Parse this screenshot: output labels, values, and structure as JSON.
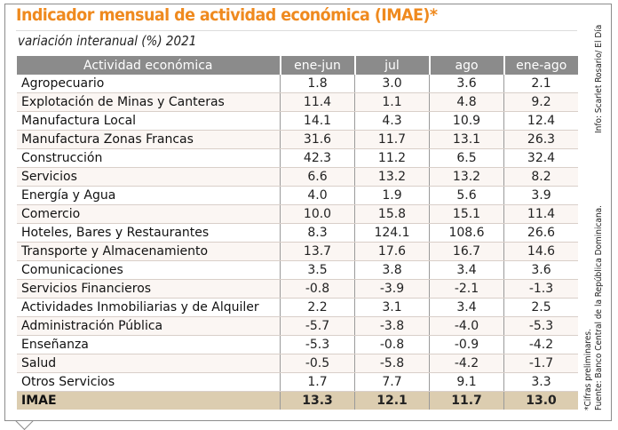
{
  "title": "Indicador mensual de actividad económica (IMAE)*",
  "subtitle": "variación interanual (%) 2021",
  "credit": "Info: Scarlet Rosario/ El Día",
  "notes": [
    "*Cifras preliminares.",
    "Fuente: Banco Central de la República Dominicana."
  ],
  "colors": {
    "title": "#ef8a1f",
    "header": "#8b8b8b",
    "total_row": "#dccdb0"
  },
  "chart_data": {
    "type": "table",
    "columns": [
      "Actividad económica",
      "ene-jun",
      "jul",
      "ago",
      "ene-ago"
    ],
    "rows": [
      [
        "Agropecuario",
        "1.8",
        "3.0",
        "3.6",
        "2.1"
      ],
      [
        "Explotación de Minas y Canteras",
        "11.4",
        "1.1",
        "4.8",
        "9.2"
      ],
      [
        "Manufactura Local",
        "14.1",
        "4.3",
        "10.9",
        "12.4"
      ],
      [
        "Manufactura Zonas Francas",
        "31.6",
        "11.7",
        "13.1",
        "26.3"
      ],
      [
        "Construcción",
        "42.3",
        "11.2",
        "6.5",
        "32.4"
      ],
      [
        "Servicios",
        "6.6",
        "13.2",
        "13.2",
        "8.2"
      ],
      [
        "Energía y Agua",
        "4.0",
        "1.9",
        "5.6",
        "3.9"
      ],
      [
        "Comercio",
        "10.0",
        "15.8",
        "15.1",
        "11.4"
      ],
      [
        "Hoteles, Bares y Restaurantes",
        "8.3",
        "124.1",
        "108.6",
        "26.6"
      ],
      [
        "Transporte y Almacenamiento",
        "13.7",
        "17.6",
        "16.7",
        "14.6"
      ],
      [
        "Comunicaciones",
        "3.5",
        "3.8",
        "3.4",
        "3.6"
      ],
      [
        "Servicios Financieros",
        "-0.8",
        "-3.9",
        "-2.1",
        "-1.3"
      ],
      [
        "Actividades Inmobiliarias y de Alquiler",
        "2.2",
        "3.1",
        "3.4",
        "2.5"
      ],
      [
        "Administración Pública",
        "-5.7",
        "-3.8",
        "-4.0",
        "-5.3"
      ],
      [
        "Enseñanza",
        "-5.3",
        "-0.8",
        "-0.9",
        "-4.2"
      ],
      [
        "Salud",
        "-0.5",
        "-5.8",
        "-4.2",
        "-1.7"
      ],
      [
        "Otros Servicios",
        "1.7",
        "7.7",
        "9.1",
        "3.3"
      ],
      [
        "IMAE",
        "13.3",
        "12.1",
        "11.7",
        "13.0"
      ]
    ]
  }
}
